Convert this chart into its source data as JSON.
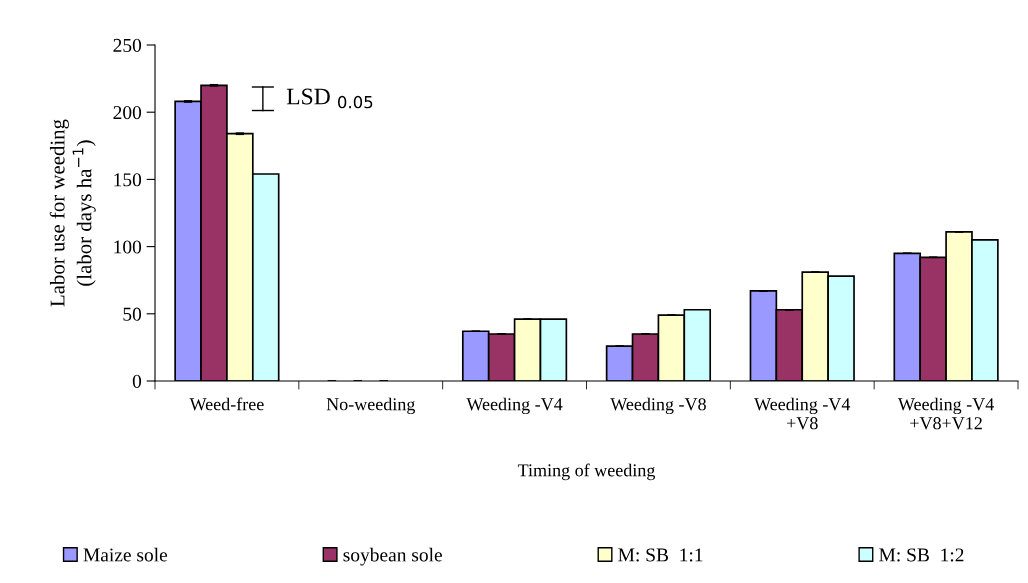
{
  "chart_data": {
    "type": "bar",
    "xlabel": "Timing of weeding",
    "ylabel": "Labor use for weeding\n(labor days ha$^{−1}$)",
    "categories": [
      "Weed-free",
      "No-weeding",
      "Weeding -V4",
      "Weeding -V8",
      "Weeding -V4\n+V8",
      "Weeding -V4\n+V8+V12"
    ],
    "series": [
      {
        "name": "Maize sole",
        "color": "#9999ff",
        "values": [
          208,
          0,
          37,
          26,
          67,
          95
        ],
        "errors": [
          0.5,
          null,
          null,
          null,
          null,
          null
        ]
      },
      {
        "name": "soybean sole",
        "color": "#993366",
        "values": [
          220,
          0,
          35,
          35,
          53,
          92
        ],
        "errors": [
          0.5,
          null,
          null,
          null,
          null,
          null
        ]
      },
      {
        "name": "M: SB  1:1",
        "color": "#ffffcc",
        "values": [
          184,
          0,
          46,
          49,
          81,
          111
        ],
        "errors": [
          0.5,
          null,
          null,
          null,
          null,
          null
        ]
      },
      {
        "name": "M: SB  1:2",
        "color": "#ccffff",
        "values": [
          154,
          0,
          46,
          53,
          78,
          105
        ]
      }
    ],
    "ylim": [
      0,
      250
    ],
    "yticks": [
      0,
      50,
      100,
      150,
      200,
      250
    ],
    "grid": false,
    "legend": "bottom",
    "annotations": [
      "LSD $_{0.05}$"
    ]
  }
}
